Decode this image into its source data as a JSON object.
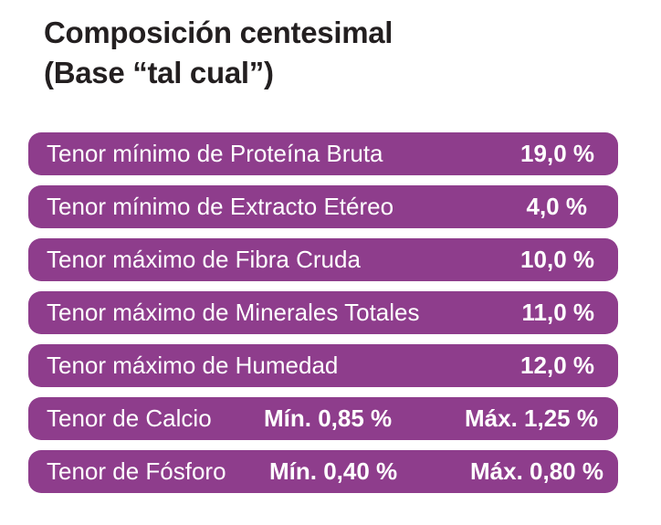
{
  "title": {
    "line1": "Composición centesimal",
    "line2": "(Base “tal cual”)"
  },
  "colors": {
    "row_background": "#8e3d8c",
    "row_text": "#ffffff",
    "title_text": "#231f20"
  },
  "rows": [
    {
      "label": "Tenor mínimo de Proteína Bruta",
      "value": "19,0 %"
    },
    {
      "label": "Tenor mínimo de Extracto Etéreo",
      "value": "4,0 %"
    },
    {
      "label": "Tenor máximo de Fibra Cruda",
      "value": "10,0 %"
    },
    {
      "label": "Tenor máximo de Minerales Totales",
      "value": "11,0 %"
    },
    {
      "label": "Tenor máximo de Humedad",
      "value": "12,0 %"
    }
  ],
  "calcio": {
    "label": "Tenor de Calcio",
    "min": "Mín.  0,85 %",
    "max": "Máx. 1,25 %"
  },
  "fosforo": {
    "label": "Tenor de Fósforo",
    "min": "Mín.  0,40 %",
    "max": "Máx. 0,80 %"
  }
}
